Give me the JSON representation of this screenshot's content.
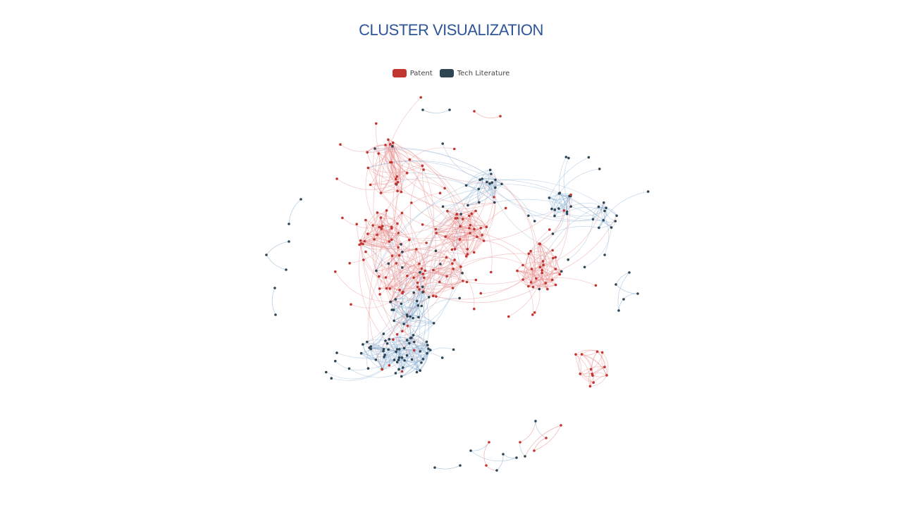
{
  "title": "CLUSTER VISUALIZATION",
  "legend": [
    {
      "label": "Patent",
      "color": "#c23531"
    },
    {
      "label": "Tech Literature",
      "color": "#2f4554"
    }
  ],
  "colors": {
    "patent_node": "#c23531",
    "literature_node": "#2f4554",
    "patent_edge": "#e8908f",
    "literature_edge": "#8fb3d4",
    "background": "#ffffff"
  },
  "chart_data": {
    "type": "network",
    "categories": [
      "Patent",
      "Tech Literature"
    ],
    "clusters": [
      {
        "category": "Patent",
        "nodes": 24
      },
      {
        "category": "Patent",
        "nodes": 26
      },
      {
        "category": "Patent",
        "nodes": 30
      },
      {
        "category": "Patent",
        "nodes": 22
      },
      {
        "category": "Patent",
        "nodes": 18
      },
      {
        "category": "Patent",
        "nodes": 28
      },
      {
        "category": "Patent",
        "nodes": 12
      },
      {
        "category": "Tech Literature",
        "nodes": 16
      },
      {
        "category": "Tech Literature",
        "nodes": 14
      },
      {
        "category": "Tech Literature",
        "nodes": 10
      },
      {
        "category": "Tech Literature",
        "nodes": 22
      },
      {
        "category": "Tech Literature",
        "nodes": 34
      },
      {
        "category": "Tech Literature",
        "nodes": 18
      }
    ]
  }
}
